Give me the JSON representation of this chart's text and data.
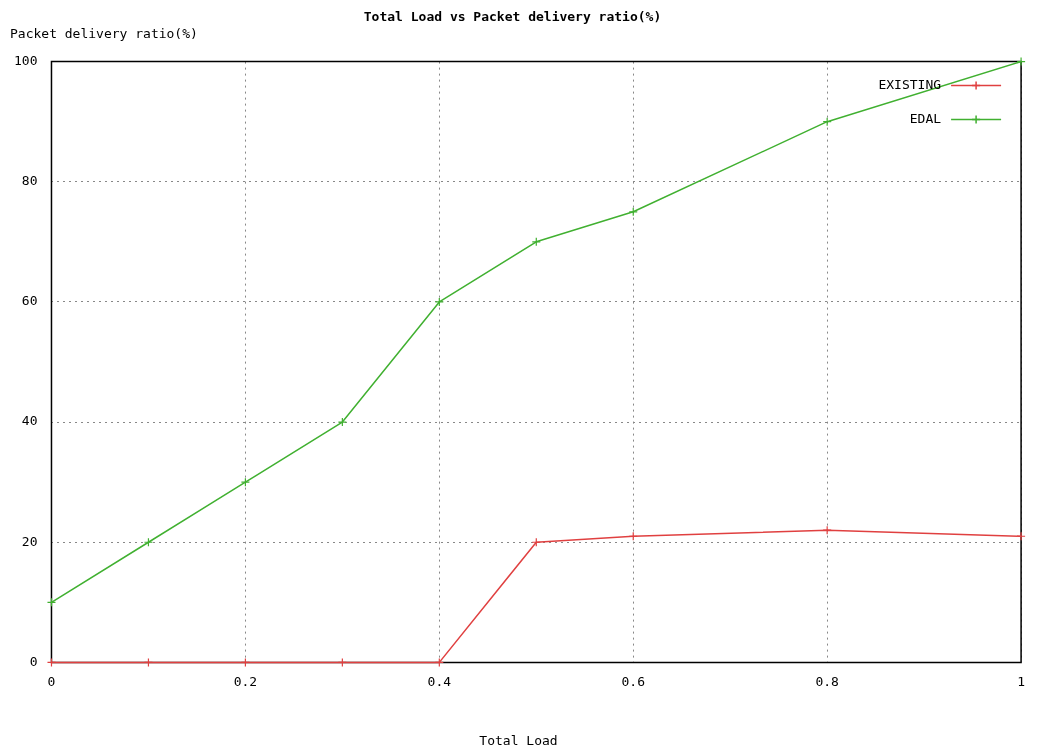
{
  "chart_data": {
    "type": "line",
    "title": "Total Load vs Packet delivery ratio(%)",
    "xlabel": "Total Load",
    "ylabel": "Packet delivery ratio(%)",
    "x": [
      0,
      0.1,
      0.2,
      0.3,
      0.4,
      0.5,
      0.6,
      0.8,
      1
    ],
    "series": [
      {
        "name": "EXISTING",
        "color": "#e04040",
        "values": [
          0,
          0,
          0,
          0,
          0,
          20,
          21,
          22,
          21
        ]
      },
      {
        "name": "EDAL",
        "color": "#40b030",
        "values": [
          10,
          20,
          30,
          40,
          60,
          70,
          75,
          90,
          100
        ]
      }
    ],
    "xlim": [
      0,
      1
    ],
    "xticks": [
      0,
      0.2,
      0.4,
      0.6,
      0.8,
      1
    ],
    "ylim": [
      0,
      100
    ],
    "yticks": [
      0,
      20,
      40,
      60,
      80,
      100
    ],
    "grid": true,
    "legend": "top right",
    "marker": "cross",
    "line_style": "solid"
  }
}
